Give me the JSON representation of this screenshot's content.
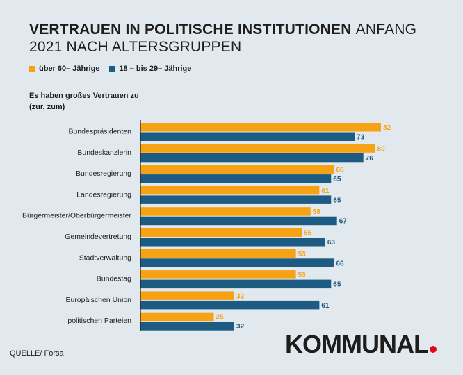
{
  "title_bold": "VERTRAUEN IN POLITISCHE INSTITUTIONEN",
  "title_light": "ANFANG 2021 NACH ALTERSGRUPPEN",
  "subtitle": "Es haben großes Vertrauen zu (zur, zum)",
  "source": "QUELLE/ Forsa",
  "logo": "KOMMUNAL",
  "colors": {
    "series_a": "#f5a214",
    "series_b": "#1d5b82",
    "background": "#e2e9ee",
    "logo_dot": "#e30613"
  },
  "chart_data": {
    "type": "bar",
    "orientation": "horizontal",
    "categories": [
      "Bundespräsidenten",
      "Bundeskanzlerin",
      "Bundesregierung",
      "Landesregierung",
      "Bürgermeister/Oberbürgermeister",
      "Gemeindevertretung",
      "Stadtverwaltung",
      "Bundestag",
      "Europäischen Union",
      "politischen Parteien"
    ],
    "series": [
      {
        "name": "über 60– Jährige",
        "values": [
          82,
          80,
          66,
          61,
          58,
          55,
          53,
          53,
          32,
          25
        ]
      },
      {
        "name": "18 – bis 29– Jährige",
        "values": [
          73,
          76,
          65,
          65,
          67,
          63,
          66,
          65,
          61,
          32
        ]
      }
    ],
    "xlim": [
      0,
      82
    ],
    "legend": "top-left",
    "grid": false
  }
}
